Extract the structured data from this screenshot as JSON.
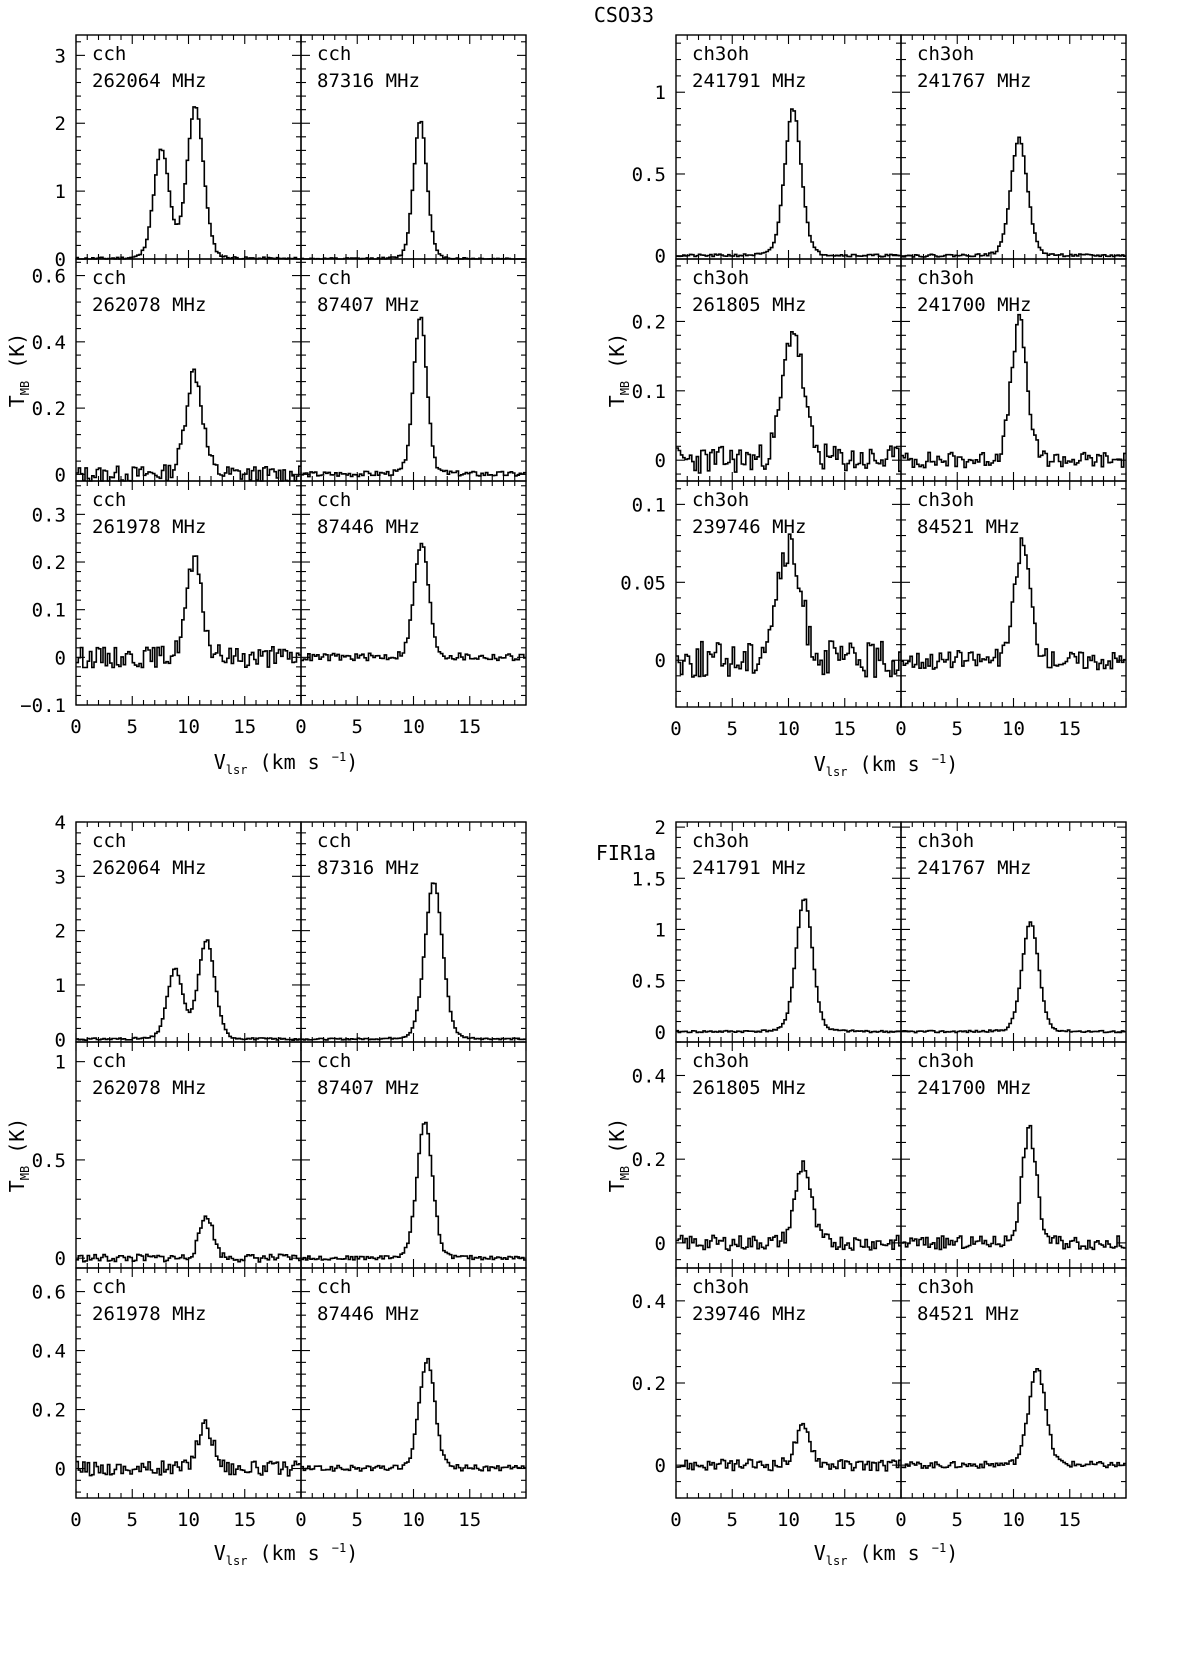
{
  "chart_data": [
    {
      "type": "line",
      "title": "CSO33",
      "subtitle": "cch",
      "xlabel": "V_lsr (km s^-1)",
      "ylabel": "T_MB (K)",
      "x_ticks": [
        "0",
        "5",
        "10",
        "15"
      ],
      "xlim": [
        0,
        20
      ],
      "columns": [
        "left",
        "right"
      ],
      "rows": [
        {
          "ylim": [
            0,
            3.3
          ],
          "yticks": [
            0,
            1,
            2,
            3
          ],
          "panels": [
            {
              "species": "cch",
              "freq_label": "262064 MHz",
              "lines": [
                {
                  "center": 7.6,
                  "peak": 1.6,
                  "width": 0.7
                },
                {
                  "center": 10.6,
                  "peak": 2.25,
                  "width": 0.75
                }
              ],
              "noise": 0.02,
              "seed": 11
            },
            {
              "species": "cch",
              "freq_label": "87316  MHz",
              "lines": [
                {
                  "center": 10.6,
                  "peak": 2.05,
                  "width": 0.6
                }
              ],
              "noise": 0.015,
              "seed": 12
            }
          ]
        },
        {
          "ylim": [
            -0.02,
            0.65
          ],
          "yticks": [
            0,
            0.2,
            0.4,
            0.6
          ],
          "panels": [
            {
              "species": "cch",
              "freq_label": "262078 MHz",
              "lines": [
                {
                  "center": 10.5,
                  "peak": 0.31,
                  "width": 0.75
                }
              ],
              "noise": 0.025,
              "seed": 13
            },
            {
              "species": "cch",
              "freq_label": "87407  MHz",
              "lines": [
                {
                  "center": 10.6,
                  "peak": 0.48,
                  "width": 0.6
                }
              ],
              "noise": 0.008,
              "seed": 14
            }
          ]
        },
        {
          "ylim": [
            -0.1,
            0.37
          ],
          "yticks": [
            -0.1,
            0,
            0.1,
            0.2,
            0.3
          ],
          "panels": [
            {
              "species": "cch",
              "freq_label": "261978 MHz",
              "lines": [
                {
                  "center": 10.5,
                  "peak": 0.2,
                  "width": 0.7
                }
              ],
              "noise": 0.022,
              "seed": 15
            },
            {
              "species": "cch",
              "freq_label": "87446  MHz",
              "lines": [
                {
                  "center": 10.7,
                  "peak": 0.24,
                  "width": 0.65
                }
              ],
              "noise": 0.008,
              "seed": 16
            }
          ]
        }
      ]
    },
    {
      "type": "line",
      "title": "",
      "subtitle": "ch3oh",
      "xlabel": "V_lsr (km s^-1)",
      "ylabel": "T_MB (K)",
      "x_ticks": [
        "0",
        "5",
        "10",
        "15"
      ],
      "xlim": [
        0,
        20
      ],
      "rows": [
        {
          "ylim": [
            -0.02,
            1.35
          ],
          "yticks": [
            0,
            0.5,
            1
          ],
          "panels": [
            {
              "species": "ch3oh",
              "freq_label": "241791 MHz",
              "lines": [
                {
                  "center": 10.4,
                  "peak": 0.9,
                  "width": 0.75
                }
              ],
              "noise": 0.008,
              "seed": 21
            },
            {
              "species": "ch3oh",
              "freq_label": "241767 MHz",
              "lines": [
                {
                  "center": 10.5,
                  "peak": 0.72,
                  "width": 0.75
                }
              ],
              "noise": 0.008,
              "seed": 22
            }
          ]
        },
        {
          "ylim": [
            -0.03,
            0.29
          ],
          "yticks": [
            0,
            0.1,
            0.2
          ],
          "panels": [
            {
              "species": "ch3oh",
              "freq_label": "261805 MHz",
              "lines": [
                {
                  "center": 10.4,
                  "peak": 0.19,
                  "width": 0.9
                }
              ],
              "noise": 0.02,
              "seed": 23
            },
            {
              "species": "ch3oh",
              "freq_label": "241700 MHz",
              "lines": [
                {
                  "center": 10.5,
                  "peak": 0.2,
                  "width": 0.7
                }
              ],
              "noise": 0.012,
              "seed": 24
            }
          ]
        },
        {
          "ylim": [
            -0.03,
            0.115
          ],
          "yticks": [
            0,
            0.05,
            0.1
          ],
          "panels": [
            {
              "species": "ch3oh",
              "freq_label": "239746 MHz",
              "lines": [
                {
                  "center": 10,
                  "peak": 0.07,
                  "width": 1.1
                }
              ],
              "noise": 0.012,
              "seed": 25
            },
            {
              "species": "ch3oh",
              "freq_label": "84521  MHz",
              "lines": [
                {
                  "center": 10.8,
                  "peak": 0.075,
                  "width": 0.7
                }
              ],
              "noise": 0.006,
              "seed": 26
            }
          ]
        }
      ]
    },
    {
      "type": "line",
      "title": "FIR1a",
      "subtitle": "cch",
      "xlabel": "V_lsr (km s^-1)",
      "ylabel": "T_MB (K)",
      "x_ticks": [
        "0",
        "5",
        "10",
        "15"
      ],
      "xlim": [
        0,
        20
      ],
      "rows": [
        {
          "ylim": [
            -0.05,
            4
          ],
          "yticks": [
            0,
            1,
            2,
            3,
            4
          ],
          "panels": [
            {
              "species": "cch",
              "freq_label": "262064 MHz",
              "lines": [
                {
                  "center": 8.8,
                  "peak": 1.28,
                  "width": 0.7
                },
                {
                  "center": 11.6,
                  "peak": 1.82,
                  "width": 0.75
                }
              ],
              "noise": 0.02,
              "seed": 31
            },
            {
              "species": "cch",
              "freq_label": "87316  MHz",
              "lines": [
                {
                  "center": 11.8,
                  "peak": 2.9,
                  "width": 0.8
                }
              ],
              "noise": 0.015,
              "seed": 32
            }
          ]
        },
        {
          "ylim": [
            -0.05,
            1.1
          ],
          "yticks": [
            0,
            0.5,
            1
          ],
          "panels": [
            {
              "species": "cch",
              "freq_label": "262078 MHz",
              "lines": [
                {
                  "center": 11.6,
                  "peak": 0.22,
                  "width": 0.6
                }
              ],
              "noise": 0.02,
              "seed": 33
            },
            {
              "species": "cch",
              "freq_label": "87407  MHz",
              "lines": [
                {
                  "center": 11,
                  "peak": 0.7,
                  "width": 0.7
                }
              ],
              "noise": 0.01,
              "seed": 34
            }
          ]
        },
        {
          "ylim": [
            -0.1,
            0.68
          ],
          "yticks": [
            0,
            0.2,
            0.4,
            0.6
          ],
          "panels": [
            {
              "species": "cch",
              "freq_label": "261978 MHz",
              "lines": [
                {
                  "center": 11.5,
                  "peak": 0.15,
                  "width": 0.7
                }
              ],
              "noise": 0.025,
              "seed": 35
            },
            {
              "species": "cch",
              "freq_label": "87446  MHz",
              "lines": [
                {
                  "center": 11.2,
                  "peak": 0.37,
                  "width": 0.7
                }
              ],
              "noise": 0.01,
              "seed": 36
            }
          ]
        }
      ]
    },
    {
      "type": "line",
      "title": "",
      "subtitle": "ch3oh",
      "xlabel": "V_lsr (km s^-1)",
      "ylabel": "T_MB (K)",
      "x_ticks": [
        "0",
        "5",
        "10",
        "15"
      ],
      "xlim": [
        0,
        20
      ],
      "rows": [
        {
          "ylim": [
            -0.1,
            2.05
          ],
          "yticks": [
            0,
            0.5,
            1,
            1.5,
            2
          ],
          "panels": [
            {
              "species": "ch3oh",
              "freq_label": "241791 MHz",
              "lines": [
                {
                  "center": 11.4,
                  "peak": 1.3,
                  "width": 0.75
                }
              ],
              "noise": 0.01,
              "seed": 41
            },
            {
              "species": "ch3oh",
              "freq_label": "241767 MHz",
              "lines": [
                {
                  "center": 11.5,
                  "peak": 1.07,
                  "width": 0.75
                }
              ],
              "noise": 0.01,
              "seed": 42
            }
          ]
        },
        {
          "ylim": [
            -0.06,
            0.48
          ],
          "yticks": [
            0,
            0.2,
            0.4
          ],
          "panels": [
            {
              "species": "ch3oh",
              "freq_label": "261805 MHz",
              "lines": [
                {
                  "center": 11.3,
                  "peak": 0.19,
                  "width": 0.7
                }
              ],
              "noise": 0.018,
              "seed": 43
            },
            {
              "species": "ch3oh",
              "freq_label": "241700 MHz",
              "lines": [
                {
                  "center": 11.4,
                  "peak": 0.27,
                  "width": 0.65
                }
              ],
              "noise": 0.016,
              "seed": 44
            }
          ]
        },
        {
          "ylim": [
            -0.08,
            0.48
          ],
          "yticks": [
            0,
            0.2,
            0.4
          ],
          "panels": [
            {
              "species": "ch3oh",
              "freq_label": "239746 MHz",
              "lines": [
                {
                  "center": 11.3,
                  "peak": 0.09,
                  "width": 0.7
                }
              ],
              "noise": 0.014,
              "seed": 45
            },
            {
              "species": "ch3oh",
              "freq_label": "84521  MHz",
              "lines": [
                {
                  "center": 12.1,
                  "peak": 0.24,
                  "width": 0.75
                }
              ],
              "noise": 0.008,
              "seed": 46
            }
          ]
        }
      ]
    }
  ],
  "labels": {
    "title_top": "CSO33",
    "title_bottom": "FIR1a",
    "y_T": "T",
    "y_sub": "MB",
    "y_unit": "(K)",
    "x_V": "V",
    "x_sub": "lsr",
    "x_unit": "(km s",
    "x_exp": "−1",
    "x_close": ")"
  }
}
